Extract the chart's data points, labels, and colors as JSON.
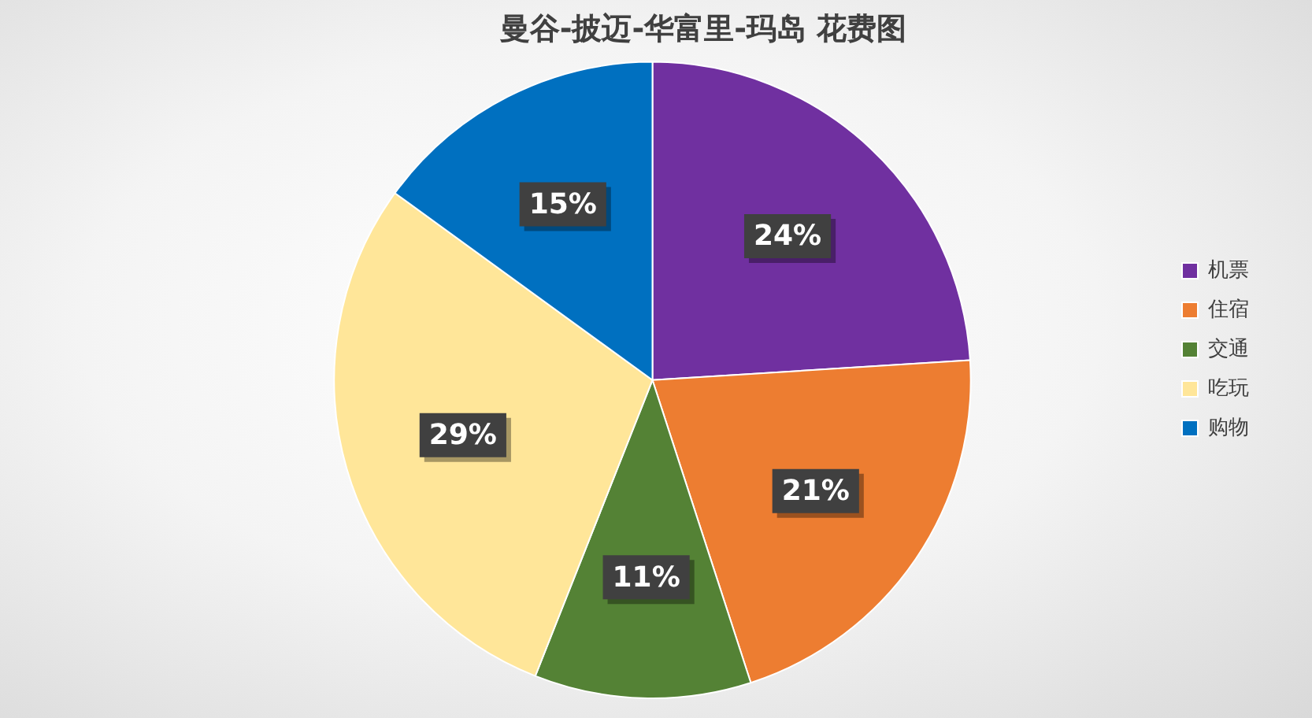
{
  "chart_data": {
    "type": "pie",
    "title": "曼谷-披迈-华富里-玛岛 花费图",
    "categories": [
      "机票",
      "住宿",
      "交通",
      "吃玩",
      "购物"
    ],
    "values": [
      24,
      21,
      11,
      29,
      15
    ],
    "colors": [
      "#7030a0",
      "#ed7d31",
      "#548235",
      "#ffe699",
      "#0070c0"
    ],
    "value_labels": [
      "24%",
      "21%",
      "11%",
      "29%",
      "15%"
    ],
    "legend": "right"
  }
}
